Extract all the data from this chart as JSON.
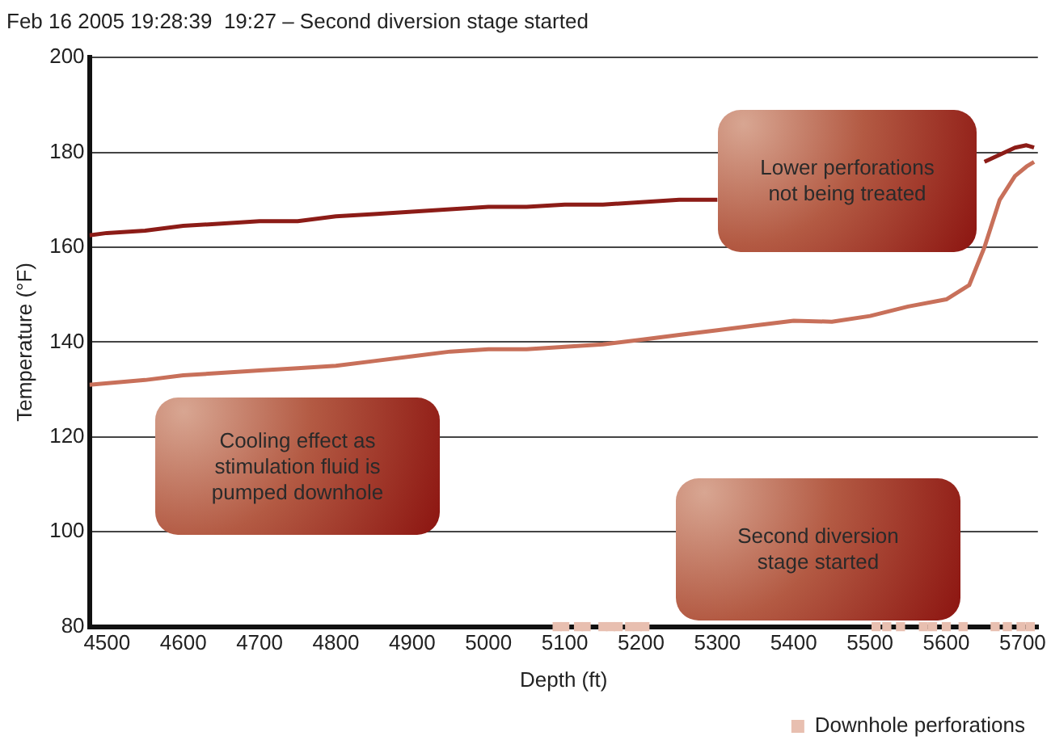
{
  "chart_data": {
    "type": "line",
    "title": "Feb 16 2005 19:28:39  19:27 – Second diversion stage started",
    "xlabel": "Depth (ft)",
    "ylabel": "Temperature (°F)",
    "xlim": [
      4477,
      5720
    ],
    "xticks": [
      4500,
      4600,
      4700,
      4800,
      4900,
      5000,
      5100,
      5200,
      5300,
      5400,
      5500,
      5600,
      5700
    ],
    "ylim": [
      80,
      200
    ],
    "yticks": [
      80,
      100,
      120,
      140,
      160,
      180,
      200
    ],
    "grid": "y",
    "legend": "bottom right",
    "marker": "none",
    "line_style": "solid",
    "annotations": [
      "Lower perforations not being treated",
      "Cooling effect as stimulation fluid is pumped downhole",
      "Second diversion stage started"
    ],
    "series": [
      {
        "color": "#8c1c17",
        "x": [
          4477,
          4500,
          4550,
          4600,
          4650,
          4700,
          4750,
          4800,
          4850,
          4900,
          4950,
          5000,
          5050,
          5100,
          5150,
          5200,
          5250,
          5300,
          5350,
          5400,
          5450,
          5500,
          5550,
          5600,
          5650,
          5690,
          5705,
          5715
        ],
        "values": [
          162.5,
          163,
          163.5,
          164.5,
          165,
          165.5,
          165.5,
          166.5,
          167,
          167.5,
          168,
          168.5,
          168.5,
          169,
          169,
          169.5,
          170,
          170,
          null,
          null,
          null,
          null,
          null,
          null,
          178,
          181,
          181.5,
          181
        ]
      },
      {
        "color": "#c8705a",
        "x": [
          4477,
          4550,
          4600,
          4650,
          4700,
          4750,
          4800,
          4850,
          4900,
          4950,
          5000,
          5050,
          5100,
          5150,
          5200,
          5250,
          5300,
          5350,
          5400,
          5450,
          5500,
          5550,
          5600,
          5630,
          5650,
          5670,
          5690,
          5705,
          5715
        ],
        "values": [
          131,
          132,
          133,
          133.5,
          134,
          134.5,
          135,
          136,
          137,
          138,
          138.5,
          138.5,
          139,
          139.5,
          140.5,
          141.5,
          142.5,
          143.5,
          144.5,
          144.3,
          145.5,
          147.5,
          149,
          152,
          160,
          170,
          175,
          177,
          178
        ]
      },
      {
        "type": "scatter",
        "name": "Downhole perforations",
        "color": "#e8bfb0",
        "marker": "square",
        "x": [
          5090,
          5100,
          5118,
          5128,
          5150,
          5160,
          5170,
          5185,
          5195,
          5205,
          5508,
          5522,
          5540,
          5570,
          5582,
          5600,
          5622,
          5664,
          5680,
          5698,
          5710
        ],
        "values": [
          80,
          80,
          80,
          80,
          80,
          80,
          80,
          80,
          80,
          80,
          80,
          80,
          80,
          80,
          80,
          80,
          80,
          80,
          80,
          80,
          80
        ]
      }
    ]
  }
}
